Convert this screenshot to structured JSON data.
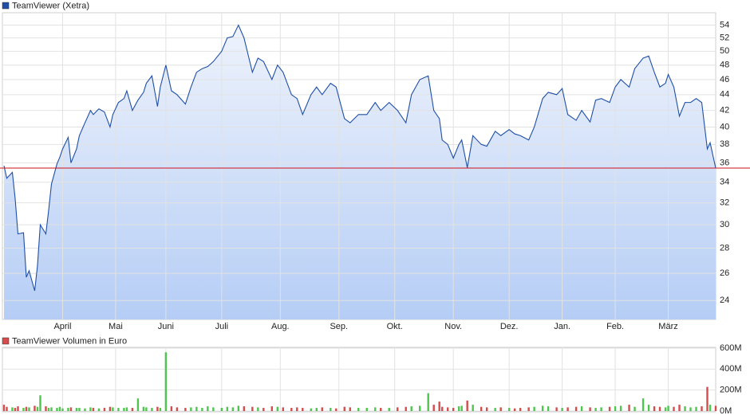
{
  "chart_data": [
    {
      "type": "line",
      "log_scale": true,
      "grid": true,
      "x": [
        0,
        1,
        3,
        4,
        5,
        7,
        8,
        9,
        11,
        12,
        13,
        15,
        16,
        17,
        19,
        20,
        21,
        23,
        24,
        26,
        27,
        29,
        31,
        32,
        34,
        36,
        38,
        39,
        41,
        43,
        44,
        46,
        48,
        50,
        51,
        53,
        55,
        56,
        58,
        60,
        62,
        65,
        67,
        69,
        71,
        73,
        75,
        78,
        80,
        82,
        84,
        86,
        89,
        91,
        93,
        96,
        98,
        100,
        103,
        105,
        107,
        110,
        112,
        114,
        117,
        119,
        122,
        124,
        127,
        130,
        133,
        135,
        138,
        141,
        144,
        146,
        149,
        152,
        154,
        156,
        157,
        159,
        161,
        163,
        164,
        166,
        168,
        171,
        173,
        176,
        178,
        181,
        183,
        185,
        188,
        190,
        193,
        195,
        198,
        200,
        202,
        205,
        207,
        210,
        212,
        214,
        217,
        219,
        221,
        224,
        226,
        229,
        231,
        233,
        235,
        237,
        238,
        240,
        242,
        244,
        246,
        248,
        250,
        252,
        253,
        255
      ],
      "xlim": [
        0,
        255
      ],
      "xticks": [
        {
          "value": 21,
          "label": "April"
        },
        {
          "value": 40,
          "label": "Mai"
        },
        {
          "value": 58,
          "label": "Juni"
        },
        {
          "value": 78,
          "label": "Juli"
        },
        {
          "value": 99,
          "label": "Aug."
        },
        {
          "value": 120,
          "label": "Sep."
        },
        {
          "value": 140,
          "label": "Okt."
        },
        {
          "value": 161,
          "label": "Nov."
        },
        {
          "value": 181,
          "label": "Dez."
        },
        {
          "value": 200,
          "label": "Jan."
        },
        {
          "value": 219,
          "label": "Feb."
        },
        {
          "value": 238,
          "label": "März"
        }
      ],
      "ylim": [
        22.7,
        56
      ],
      "yticks": [
        24,
        26,
        28,
        30,
        32,
        34,
        36,
        38,
        40,
        42,
        44,
        46,
        48,
        50,
        52,
        54
      ],
      "fill_colors": [
        "#eef3fc",
        "#b5cdf5"
      ],
      "last_line_color": "#d0101a",
      "series": [
        {
          "name": "TeamViewer (Xetra)",
          "color": "#1f4fa6",
          "values": [
            35.7,
            34.4,
            35.0,
            32.4,
            29.2,
            29.3,
            25.7,
            26.2,
            24.7,
            26.6,
            30.0,
            29.2,
            31.3,
            33.8,
            35.9,
            36.6,
            37.5,
            38.8,
            36.0,
            37.5,
            39.0,
            40.5,
            42.0,
            41.5,
            42.2,
            41.8,
            40.0,
            41.5,
            43.0,
            43.5,
            44.5,
            42.0,
            43.3,
            44.3,
            45.5,
            46.5,
            42.5,
            45.0,
            48.0,
            44.5,
            44.0,
            42.8,
            45.0,
            47.0,
            47.5,
            47.8,
            48.5,
            50.0,
            52.0,
            52.2,
            54.0,
            52.0,
            47.0,
            49.0,
            48.5,
            46.0,
            48.0,
            47.0,
            44.0,
            43.5,
            41.5,
            44.0,
            45.0,
            44.0,
            45.5,
            45.0,
            41.0,
            40.5,
            41.5,
            41.5,
            43.0,
            42.0,
            43.0,
            42.0,
            40.5,
            44.0,
            46.0,
            46.5,
            42.0,
            41.0,
            38.5,
            38.0,
            36.5,
            38.0,
            38.5,
            35.5,
            39.0,
            38.0,
            37.8,
            39.5,
            39.0,
            39.7,
            39.2,
            39.0,
            38.5,
            40.0,
            43.5,
            44.3,
            44.0,
            44.8,
            41.5,
            40.8,
            42.0,
            40.6,
            43.3,
            43.5,
            43.0,
            45.0,
            46.0,
            45.0,
            47.5,
            49.0,
            49.3,
            47.0,
            45.0,
            45.5,
            46.7,
            45.0,
            41.3,
            43.0,
            43.0,
            43.5,
            43.0,
            37.5,
            38.2,
            35.45
          ]
        }
      ]
    },
    {
      "type": "bar",
      "grid": true,
      "ylim": [
        0,
        600
      ],
      "yticks": [
        {
          "value": 0,
          "label": "0M"
        },
        {
          "value": 200,
          "label": "200M"
        },
        {
          "value": 400,
          "label": "400M"
        },
        {
          "value": 600,
          "label": "600M"
        }
      ],
      "series": [
        {
          "name": "TeamViewer Volumen in Euro",
          "color": "#d44c4c",
          "up_color": "#4fc44f",
          "values": [
            60,
            40,
            35,
            30,
            45,
            30,
            40,
            35,
            50,
            40,
            150,
            45,
            30,
            35,
            30,
            40,
            25,
            30,
            35,
            30,
            30,
            25,
            35,
            30,
            25,
            30,
            40,
            35,
            30,
            30,
            35,
            30,
            120,
            40,
            35,
            30,
            40,
            30,
            560,
            45,
            35,
            30,
            35,
            40,
            30,
            45,
            35,
            30,
            40,
            35,
            50,
            45,
            40,
            35,
            30,
            45,
            40,
            35,
            30,
            35,
            30,
            25,
            30,
            35,
            30,
            25,
            40,
            35,
            30,
            30,
            35,
            30,
            30,
            35,
            40,
            45,
            50,
            170,
            60,
            90,
            40,
            35,
            30,
            45,
            50,
            100,
            60,
            40,
            35,
            30,
            35,
            30,
            25,
            30,
            35,
            40,
            50,
            45,
            35,
            30,
            35,
            40,
            45,
            35,
            30,
            35,
            40,
            45,
            50,
            60,
            40,
            120,
            60,
            45,
            40,
            35,
            50,
            40,
            60,
            45,
            35,
            40,
            45,
            230,
            60,
            50
          ]
        }
      ]
    }
  ]
}
